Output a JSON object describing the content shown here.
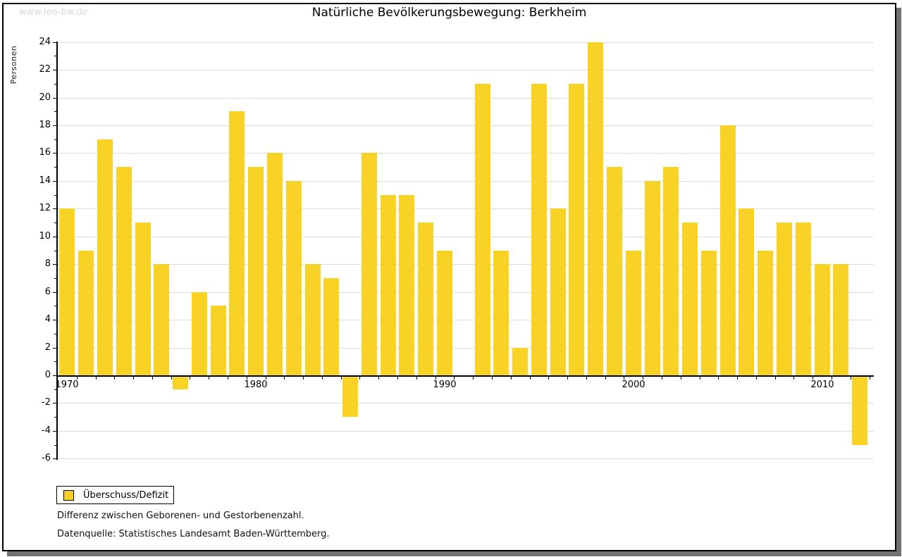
{
  "watermark": "www.leo-bw.de",
  "chart_data": {
    "type": "bar",
    "title": "Natürliche Bevölkerungsbewegung: Berkheim",
    "ylabel": "Personen",
    "xlabel": "",
    "legend_label": "Überschuss/Defizit",
    "legend_position": "bottom-left",
    "grid": true,
    "ylim": [
      -6,
      24
    ],
    "ytick_step": 2,
    "ytick_labels": [
      -6,
      -4,
      -2,
      0,
      2,
      4,
      6,
      8,
      10,
      12,
      14,
      16,
      18,
      20,
      22,
      24
    ],
    "xtick_labels": [
      "1970",
      "1980",
      "1990",
      "2000",
      "2010"
    ],
    "bar_color": "#F9D226",
    "categories": [
      1970,
      1971,
      1972,
      1973,
      1974,
      1975,
      1976,
      1977,
      1978,
      1979,
      1980,
      1981,
      1982,
      1983,
      1984,
      1985,
      1986,
      1987,
      1988,
      1989,
      1990,
      1991,
      1992,
      1993,
      1994,
      1995,
      1996,
      1997,
      1998,
      1999,
      2000,
      2001,
      2002,
      2003,
      2004,
      2005,
      2006,
      2007,
      2008,
      2009,
      2010,
      2011,
      2012
    ],
    "values": [
      12,
      9,
      17,
      15,
      11,
      8,
      -1,
      6,
      5,
      19,
      15,
      16,
      14,
      8,
      7,
      -3,
      16,
      13,
      13,
      11,
      9,
      0,
      21,
      9,
      2,
      21,
      12,
      21,
      24,
      15,
      9,
      14,
      15,
      11,
      9,
      18,
      12,
      9,
      11,
      11,
      8,
      8,
      -5
    ]
  },
  "footnotes": [
    "Differenz zwischen Geborenen- und Gestorbenenzahl.",
    "Datenquelle: Statistisches Landesamt Baden-Württemberg."
  ]
}
